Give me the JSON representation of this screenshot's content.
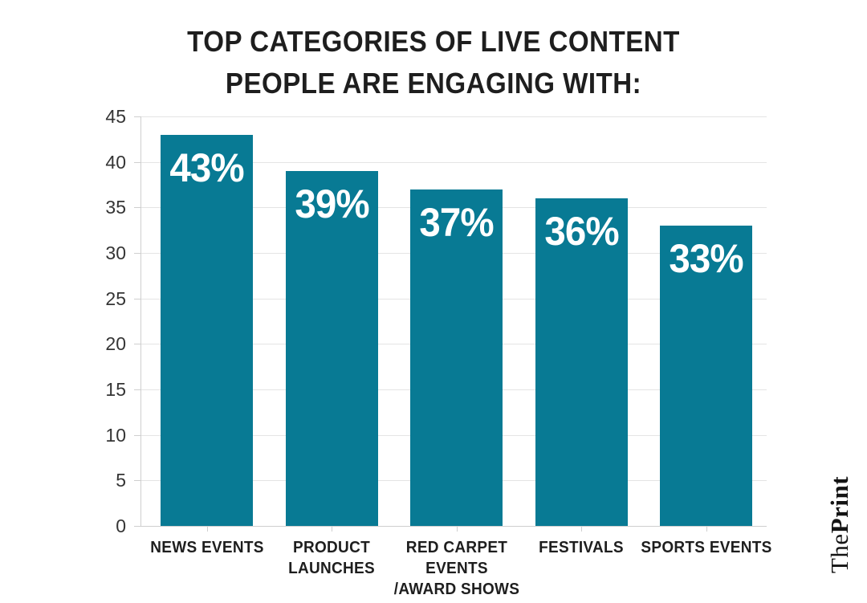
{
  "title": {
    "line1": "TOP CATEGORIES OF LIVE CONTENT",
    "line2": "PEOPLE ARE ENGAGING WITH:"
  },
  "branding": {
    "logo_the": "The",
    "logo_print": "Print"
  },
  "colors": {
    "bar": "#087A94",
    "title_text": "#1e1e1e",
    "axis_text": "#353535",
    "gridline": "#e4e4e4",
    "axis_line": "#cfcfcf",
    "value_label_text": "#ffffff"
  },
  "chart_data": {
    "type": "bar",
    "title": "TOP CATEGORIES OF LIVE CONTENT PEOPLE ARE ENGAGING WITH:",
    "categories": [
      "NEWS EVENTS",
      "PRODUCT LAUNCHES",
      "RED CARPET EVENTS /AWARD SHOWS",
      "FESTIVALS",
      "SPORTS EVENTS"
    ],
    "category_lines": [
      [
        "NEWS EVENTS"
      ],
      [
        "PRODUCT",
        "LAUNCHES"
      ],
      [
        "RED CARPET",
        "EVENTS",
        "/AWARD SHOWS"
      ],
      [
        "FESTIVALS"
      ],
      [
        "SPORTS EVENTS"
      ]
    ],
    "values": [
      43,
      39,
      37,
      36,
      33
    ],
    "value_labels": [
      "43%",
      "39%",
      "37%",
      "36%",
      "33%"
    ],
    "xlabel": "",
    "ylabel": "",
    "ylim": [
      0,
      45
    ],
    "yticks": [
      0,
      5,
      10,
      15,
      20,
      25,
      30,
      35,
      40,
      45
    ],
    "ytick_labels": [
      "0",
      "5",
      "10",
      "15",
      "20",
      "25",
      "30",
      "35",
      "40",
      "45"
    ],
    "grid": true,
    "legend": false
  }
}
